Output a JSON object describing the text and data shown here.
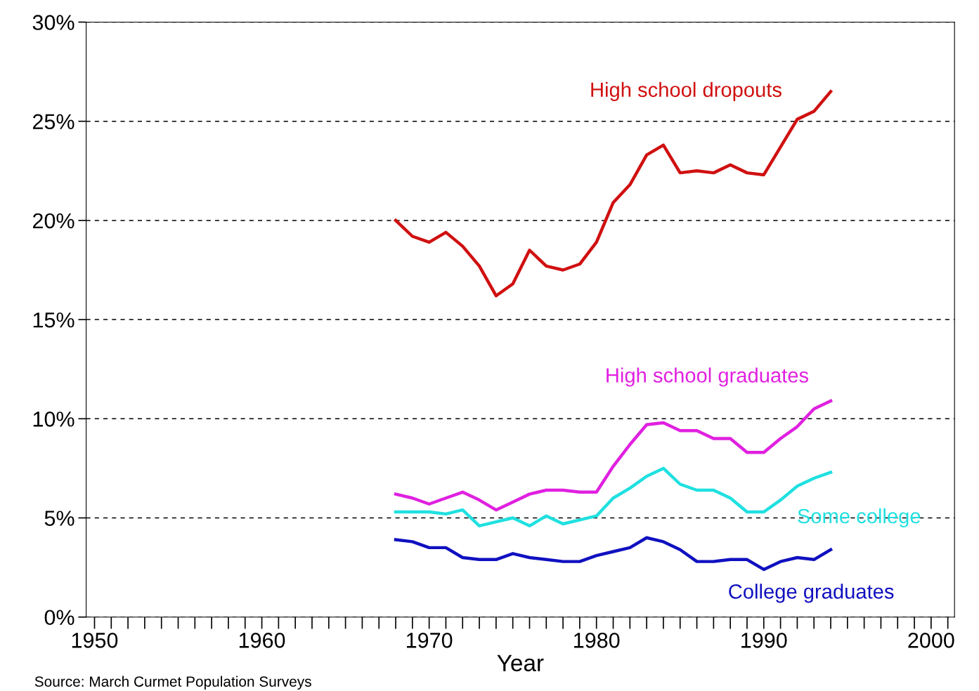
{
  "chart_data": {
    "type": "line",
    "xlabel": "Year",
    "x": [
      1968,
      1969,
      1970,
      1971,
      1972,
      1973,
      1974,
      1975,
      1976,
      1977,
      1978,
      1979,
      1980,
      1981,
      1982,
      1983,
      1984,
      1985,
      1986,
      1987,
      1988,
      1989,
      1990,
      1991,
      1992,
      1993,
      1994
    ],
    "series": [
      {
        "name": "High school dropouts",
        "color": "#d01010",
        "values": [
          20.0,
          19.2,
          18.9,
          19.4,
          18.7,
          17.7,
          16.2,
          16.8,
          18.5,
          17.7,
          17.5,
          17.8,
          18.9,
          20.9,
          21.8,
          23.3,
          23.8,
          22.4,
          22.5,
          22.4,
          22.8,
          22.4,
          22.3,
          23.7,
          25.1,
          25.5,
          26.5
        ]
      },
      {
        "name": "High school graduates",
        "color": "#e020e0",
        "values": [
          6.2,
          6.0,
          5.7,
          6.0,
          6.3,
          5.9,
          5.4,
          5.8,
          6.2,
          6.4,
          6.4,
          6.3,
          6.3,
          7.6,
          8.7,
          9.7,
          9.8,
          9.4,
          9.4,
          9.0,
          9.0,
          8.3,
          8.3,
          9.0,
          9.6,
          10.5,
          10.9
        ]
      },
      {
        "name": "Some college",
        "color": "#20e0e0",
        "values": [
          5.3,
          5.3,
          5.3,
          5.2,
          5.4,
          4.6,
          4.8,
          5.0,
          4.6,
          5.1,
          4.7,
          4.9,
          5.1,
          6.0,
          6.5,
          7.1,
          7.5,
          6.7,
          6.4,
          6.4,
          6.0,
          5.3,
          5.3,
          5.9,
          6.6,
          7.0,
          7.3
        ]
      },
      {
        "name": "College graduates",
        "color": "#1010c0",
        "values": [
          3.9,
          3.8,
          3.5,
          3.5,
          3.0,
          2.9,
          2.9,
          3.2,
          3.0,
          2.9,
          2.8,
          2.8,
          3.1,
          3.3,
          3.5,
          4.0,
          3.8,
          3.4,
          2.8,
          2.8,
          2.9,
          2.9,
          2.4,
          2.8,
          3.0,
          2.9,
          3.4
        ]
      }
    ],
    "xlim": [
      1949.5,
      2001.4
    ],
    "xticks": [
      1950,
      1960,
      1970,
      1980,
      1990,
      2000
    ],
    "ylim": [
      0,
      30
    ],
    "yticks": [
      {
        "value": 0,
        "label": "0%"
      },
      {
        "value": 5,
        "label": "5%"
      },
      {
        "value": 10,
        "label": "10%"
      },
      {
        "value": 15,
        "label": "15%"
      },
      {
        "value": 20,
        "label": "20%"
      },
      {
        "value": 25,
        "label": "25%"
      },
      {
        "value": 30,
        "label": "30%"
      }
    ],
    "grid": "y",
    "line_style": "solid",
    "annotations": [
      "Source: March Curmet Population Surveys"
    ]
  }
}
